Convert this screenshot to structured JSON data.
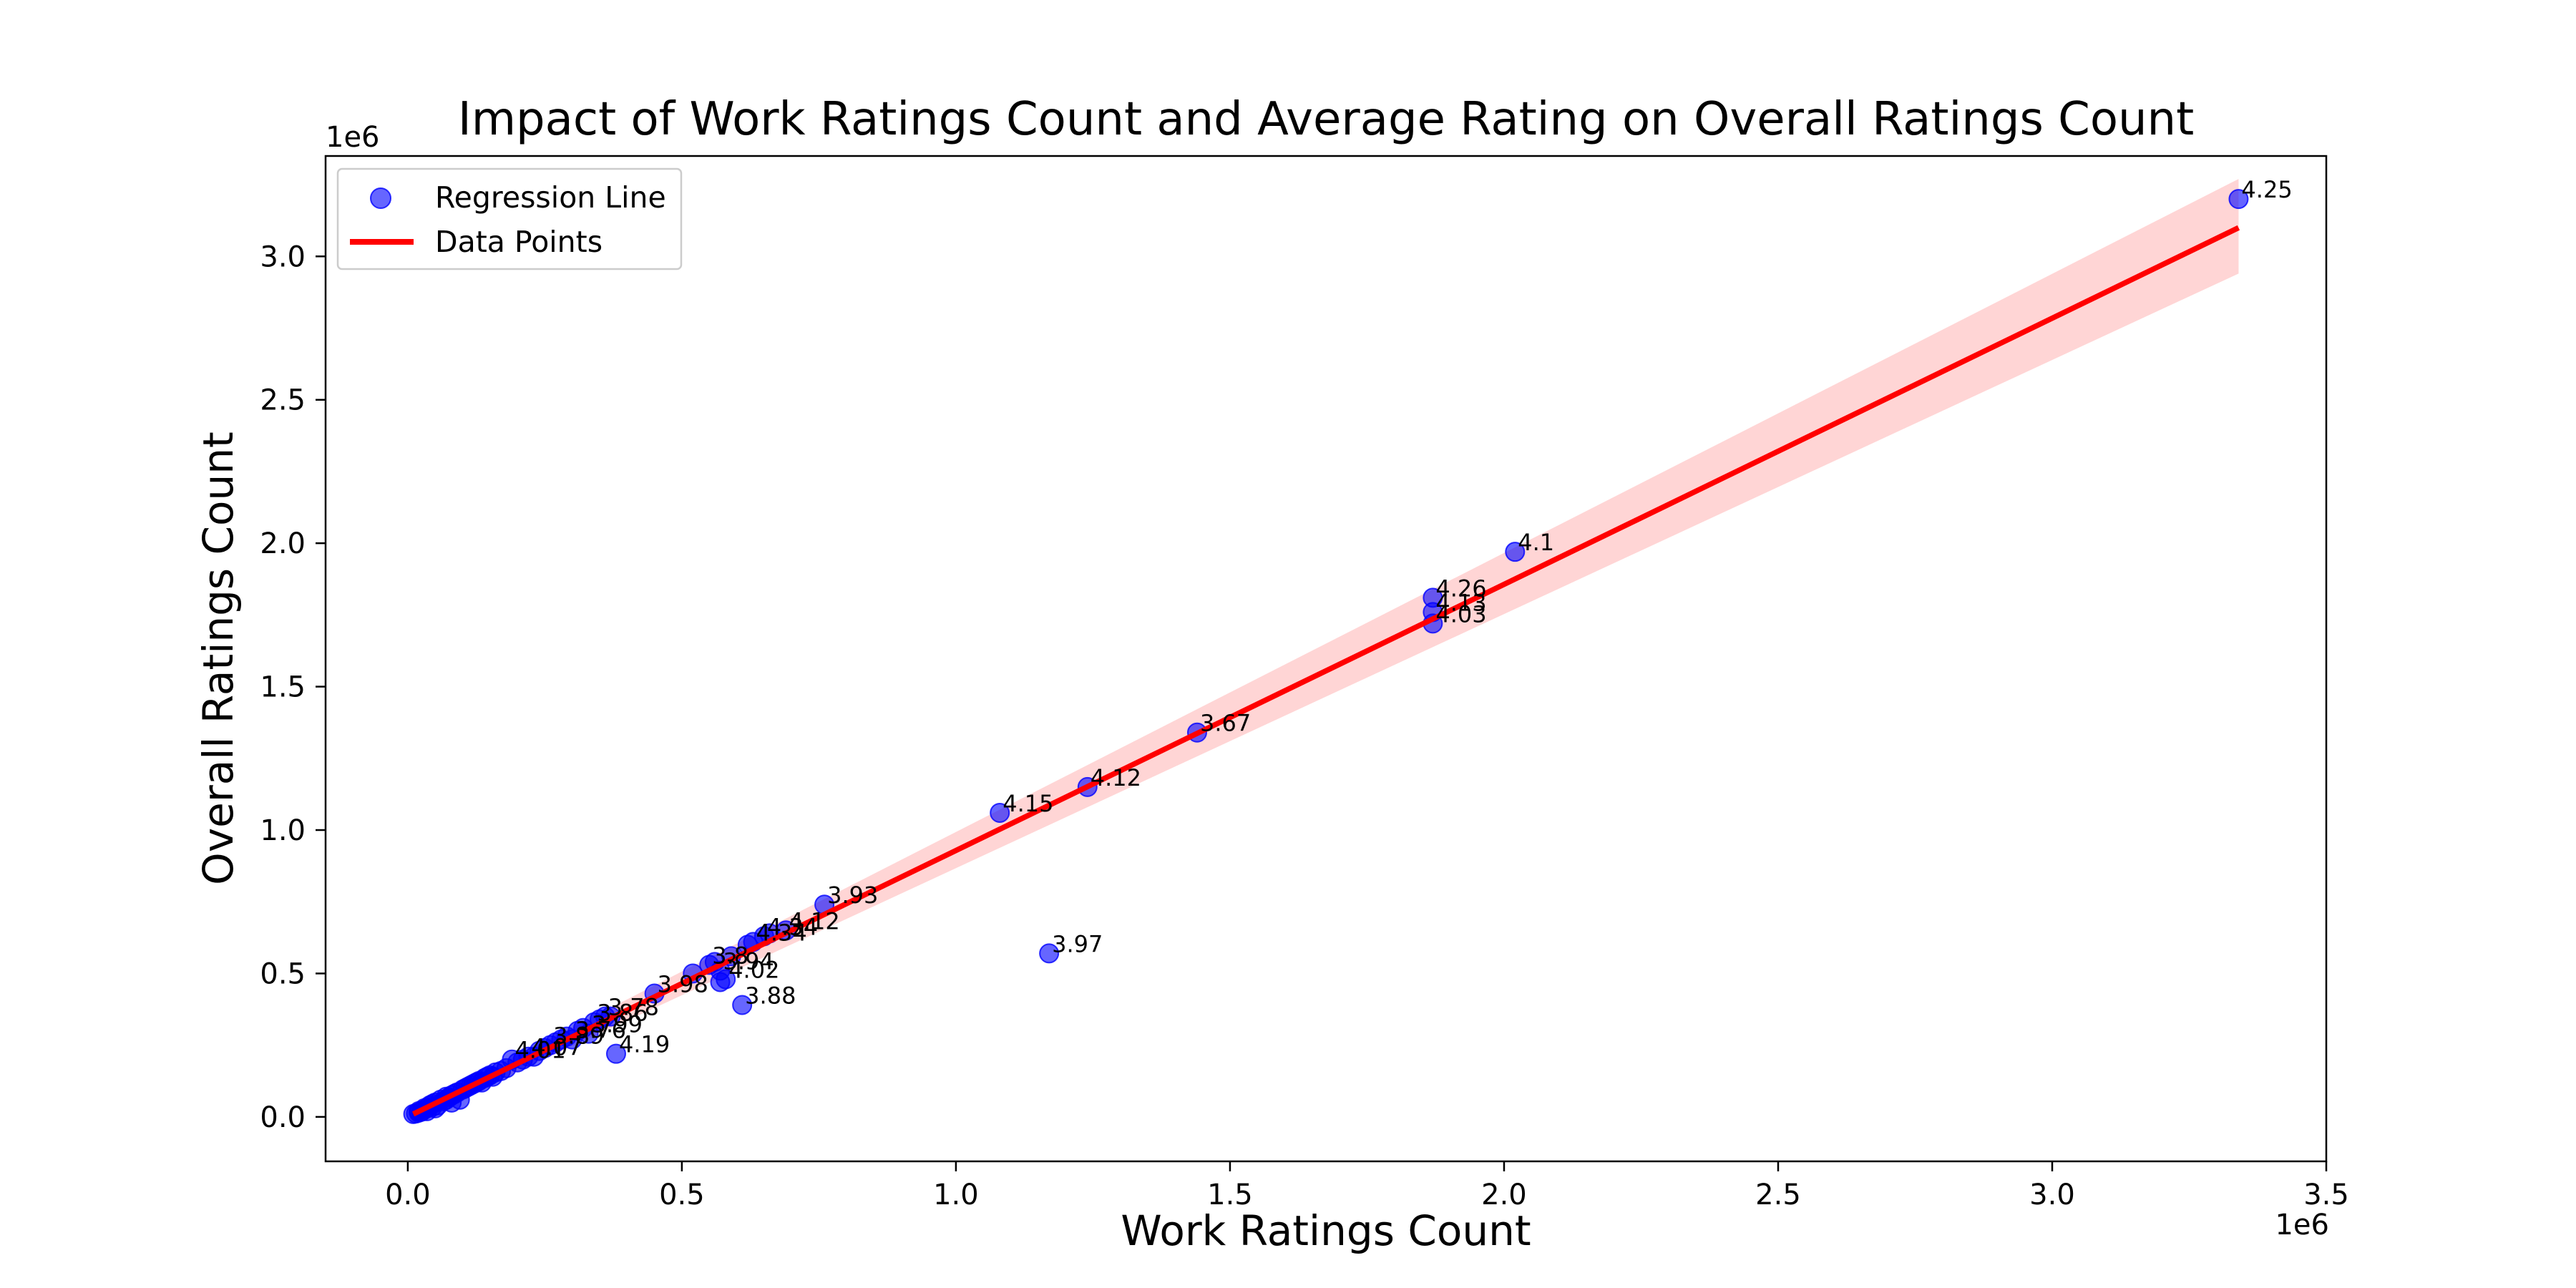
{
  "chart_data": {
    "type": "scatter",
    "title": "Impact of Work Ratings Count and Average Rating on Overall Ratings Count",
    "xlabel": "Work Ratings Count",
    "ylabel": "Overall Ratings Count",
    "x_offset_label": "1e6",
    "y_offset_label": "1e6",
    "xlim": [
      -0.15,
      3.5
    ],
    "ylim": [
      -0.155,
      3.35
    ],
    "x_unit_multiplier": 1000000,
    "y_unit_multiplier": 1000000,
    "x_ticks": [
      0.0,
      0.5,
      1.0,
      1.5,
      2.0,
      2.5,
      3.0,
      3.5
    ],
    "x_tick_labels": [
      "0.0",
      "0.5",
      "1.0",
      "1.5",
      "2.0",
      "2.5",
      "3.0",
      "3.5"
    ],
    "y_ticks": [
      0.0,
      0.5,
      1.0,
      1.5,
      2.0,
      2.5,
      3.0
    ],
    "y_tick_labels": [
      "0.0",
      "0.5",
      "1.0",
      "1.5",
      "2.0",
      "2.5",
      "3.0"
    ],
    "grid": false,
    "legend": {
      "placement": "upper left",
      "entries": [
        {
          "label": "Regression Line",
          "marker": "circle"
        },
        {
          "label": "Data Points",
          "marker": "line"
        }
      ]
    },
    "series": [
      {
        "name": "Regression Line",
        "kind": "scatter",
        "color": "#0000ff",
        "labeled_points": [
          {
            "x": 3.34,
            "y": 3.2,
            "label": "4.25"
          },
          {
            "x": 2.02,
            "y": 1.97,
            "label": "4.1"
          },
          {
            "x": 1.87,
            "y": 1.81,
            "label": "4.26"
          },
          {
            "x": 1.87,
            "y": 1.76,
            "label": "4.13"
          },
          {
            "x": 1.87,
            "y": 1.72,
            "label": "4.03"
          },
          {
            "x": 1.44,
            "y": 1.34,
            "label": "3.67"
          },
          {
            "x": 1.24,
            "y": 1.15,
            "label": "4.12"
          },
          {
            "x": 1.08,
            "y": 1.06,
            "label": "4.15"
          },
          {
            "x": 1.17,
            "y": 0.57,
            "label": "3.97"
          },
          {
            "x": 0.76,
            "y": 0.74,
            "label": "3.93"
          },
          {
            "x": 0.69,
            "y": 0.65,
            "label": "4.12"
          },
          {
            "x": 0.65,
            "y": 0.63,
            "label": "4.34"
          },
          {
            "x": 0.63,
            "y": 0.61,
            "label": "4.34"
          },
          {
            "x": 0.55,
            "y": 0.53,
            "label": "3.8"
          },
          {
            "x": 0.57,
            "y": 0.51,
            "label": "3.94"
          },
          {
            "x": 0.58,
            "y": 0.48,
            "label": "4.02"
          },
          {
            "x": 0.45,
            "y": 0.43,
            "label": "3.98"
          },
          {
            "x": 0.61,
            "y": 0.39,
            "label": "3.88"
          },
          {
            "x": 0.38,
            "y": 0.22,
            "label": "4.19"
          },
          {
            "x": 0.36,
            "y": 0.35,
            "label": "3.78"
          },
          {
            "x": 0.34,
            "y": 0.33,
            "label": "3.86"
          },
          {
            "x": 0.33,
            "y": 0.29,
            "label": "3.99"
          },
          {
            "x": 0.3,
            "y": 0.27,
            "label": "3.76"
          },
          {
            "x": 0.26,
            "y": 0.25,
            "label": "3.89"
          },
          {
            "x": 0.22,
            "y": 0.21,
            "label": "4.07"
          },
          {
            "x": 0.19,
            "y": 0.2,
            "label": "4.01"
          }
        ],
        "points": [
          [
            0.01,
            0.01
          ],
          [
            0.015,
            0.012
          ],
          [
            0.02,
            0.02
          ],
          [
            0.025,
            0.018
          ],
          [
            0.03,
            0.03
          ],
          [
            0.035,
            0.03
          ],
          [
            0.04,
            0.04
          ],
          [
            0.045,
            0.035
          ],
          [
            0.05,
            0.05
          ],
          [
            0.055,
            0.04
          ],
          [
            0.06,
            0.06
          ],
          [
            0.065,
            0.055
          ],
          [
            0.07,
            0.07
          ],
          [
            0.075,
            0.068
          ],
          [
            0.08,
            0.075
          ],
          [
            0.085,
            0.08
          ],
          [
            0.09,
            0.085
          ],
          [
            0.095,
            0.06
          ],
          [
            0.1,
            0.095
          ],
          [
            0.105,
            0.1
          ],
          [
            0.11,
            0.105
          ],
          [
            0.115,
            0.11
          ],
          [
            0.12,
            0.115
          ],
          [
            0.125,
            0.12
          ],
          [
            0.13,
            0.125
          ],
          [
            0.135,
            0.12
          ],
          [
            0.14,
            0.135
          ],
          [
            0.145,
            0.14
          ],
          [
            0.15,
            0.145
          ],
          [
            0.155,
            0.14
          ],
          [
            0.16,
            0.155
          ],
          [
            0.17,
            0.16
          ],
          [
            0.18,
            0.17
          ],
          [
            0.2,
            0.19
          ],
          [
            0.21,
            0.2
          ],
          [
            0.23,
            0.21
          ],
          [
            0.24,
            0.23
          ],
          [
            0.25,
            0.24
          ],
          [
            0.27,
            0.26
          ],
          [
            0.28,
            0.27
          ],
          [
            0.29,
            0.28
          ],
          [
            0.31,
            0.3
          ],
          [
            0.32,
            0.31
          ],
          [
            0.35,
            0.34
          ],
          [
            0.37,
            0.35
          ],
          [
            0.52,
            0.5
          ],
          [
            0.56,
            0.54
          ],
          [
            0.57,
            0.47
          ],
          [
            0.59,
            0.56
          ],
          [
            0.62,
            0.6
          ],
          [
            0.66,
            0.64
          ],
          [
            0.035,
            0.02
          ],
          [
            0.05,
            0.03
          ],
          [
            0.08,
            0.05
          ],
          [
            0.07,
            0.06
          ],
          [
            0.045,
            0.045
          ],
          [
            0.02,
            0.015
          ],
          [
            0.03,
            0.025
          ]
        ]
      },
      {
        "name": "Data Points",
        "kind": "line",
        "color": "#ff0000",
        "x": [
          0.01,
          3.34
        ],
        "y": [
          0.01,
          3.1
        ],
        "ci_band": {
          "color": "#ffd5d5",
          "x": [
            0.01,
            3.34
          ],
          "upper": [
            0.03,
            3.27
          ],
          "lower": [
            -0.01,
            2.94
          ]
        }
      }
    ]
  }
}
